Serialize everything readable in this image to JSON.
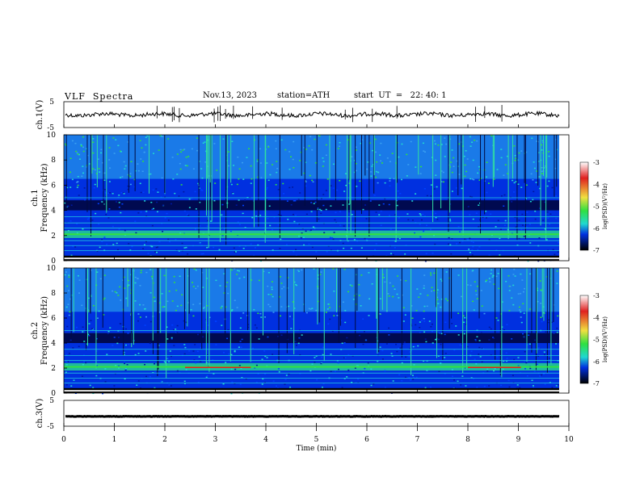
{
  "header": {
    "title": "VLF  Spectra",
    "date": "Nov.13, 2023",
    "station": "station=ATH",
    "start": "start  UT  =   22: 40: 1"
  },
  "chart_data": [
    {
      "type": "line",
      "name": "ch1-waveform",
      "ylabel": "ch.1(V)",
      "yticks": [
        "5",
        "-5"
      ],
      "ylim": [
        -5,
        5
      ],
      "xlim": [
        0,
        10
      ],
      "approx_level": 0,
      "color": "#000000"
    },
    {
      "type": "heatmap",
      "name": "ch1-spectrogram",
      "ylabel": "ch.1\nFrequency (kHz)",
      "ylabel_lines": [
        "ch.1",
        "Frequency (kHz)"
      ],
      "yticks": [
        "0",
        "2",
        "4",
        "6",
        "8",
        "10"
      ],
      "ylim": [
        0,
        10
      ],
      "xlim": [
        0,
        10
      ],
      "colorbar": {
        "label": "log(PSD)(V²/Hz)",
        "ticks": [
          "-3",
          "-4",
          "-5",
          "-6",
          "-7"
        ],
        "range": [
          -7,
          -3
        ]
      }
    },
    {
      "type": "heatmap",
      "name": "ch2-spectrogram",
      "ylabel": "ch.2\nFrequency (kHz)",
      "ylabel_lines": [
        "ch.2",
        "Frequency (kHz)"
      ],
      "yticks": [
        "0",
        "2",
        "4",
        "6",
        "8",
        "10"
      ],
      "ylim": [
        0,
        10
      ],
      "xlim": [
        0,
        10
      ],
      "colorbar": {
        "label": "log(PSD)(V²/Hz)",
        "ticks": [
          "-3",
          "-4",
          "-5",
          "-6",
          "-7"
        ],
        "range": [
          -7,
          -3
        ]
      }
    },
    {
      "type": "line",
      "name": "ch3-waveform",
      "ylabel": "ch.3(V)",
      "yticks": [
        "5",
        "-5"
      ],
      "ylim": [
        -5,
        5
      ],
      "xlim": [
        0,
        10
      ],
      "approx_level": -1.2,
      "color": "#000000"
    }
  ],
  "xaxis": {
    "label": "Time  (min)",
    "ticks": [
      "0",
      "1",
      "2",
      "3",
      "4",
      "5",
      "6",
      "7",
      "8",
      "9",
      "10"
    ],
    "range": [
      0,
      10
    ]
  },
  "colors": {
    "spectro_dark": "#000a50",
    "spectro_blue": "#0030e0",
    "spectro_cyan": "#20d8d0",
    "spectro_green": "#30e040",
    "spectro_red": "#e02020"
  }
}
